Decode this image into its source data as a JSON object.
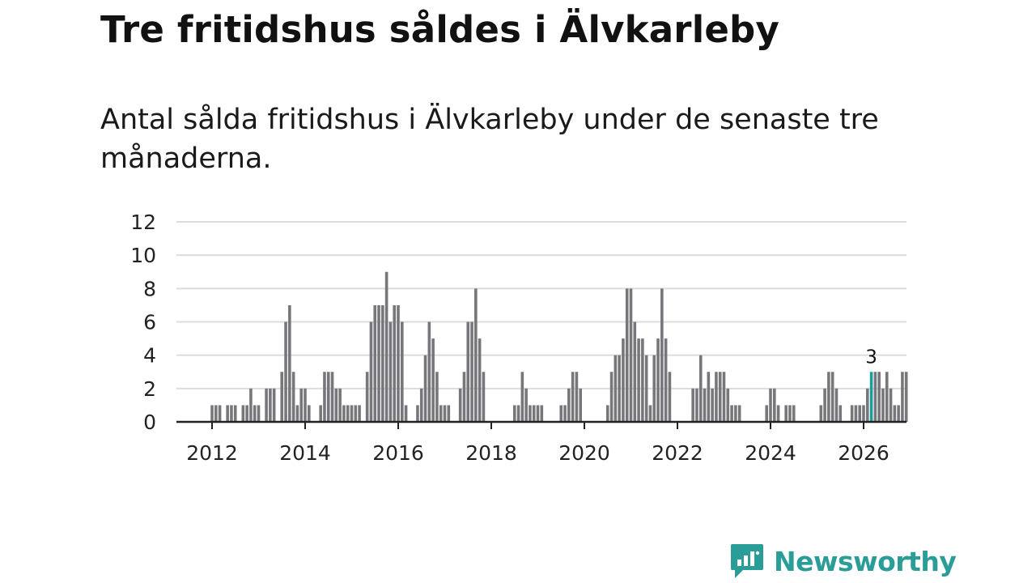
{
  "title": "Tre fritidshus såldes i Älvkarleby",
  "subtitle": "Antal sålda fritidshus i Älvkarleby under de senaste tre månaderna.",
  "brand": {
    "name": "Newsworthy",
    "color": "#2a9d99",
    "icon": "chat-bar-chart-icon"
  },
  "colors": {
    "bar": "#77767b",
    "highlight": "#1a9e9a",
    "grid": "#dcdcdc",
    "axis": "#222222"
  },
  "chart_data": {
    "type": "bar",
    "title": "",
    "xlabel": "",
    "ylabel": "",
    "ylim": [
      0,
      12
    ],
    "yticks": [
      0,
      2,
      4,
      6,
      8,
      10,
      12
    ],
    "xticks": [
      "2012",
      "2014",
      "2016",
      "2018",
      "2020",
      "2022",
      "2024",
      "2026"
    ],
    "start": "2012-01",
    "series": [
      {
        "name": "Antal sålda fritidshus",
        "values": [
          1,
          1,
          1,
          0,
          1,
          1,
          1,
          0,
          1,
          1,
          2,
          1,
          1,
          0,
          2,
          2,
          2,
          0,
          3,
          6,
          7,
          3,
          1,
          2,
          2,
          1,
          0,
          0,
          1,
          3,
          3,
          3,
          2,
          2,
          1,
          1,
          1,
          1,
          1,
          0,
          3,
          6,
          7,
          7,
          7,
          9,
          6,
          7,
          7,
          6,
          1,
          0,
          0,
          1,
          2,
          4,
          6,
          5,
          3,
          1,
          1,
          1,
          0,
          0,
          2,
          3,
          6,
          6,
          8,
          5,
          3,
          0,
          0,
          0,
          0,
          0,
          0,
          0,
          1,
          1,
          3,
          2,
          1,
          1,
          1,
          1,
          0,
          0,
          0,
          0,
          1,
          1,
          2,
          3,
          3,
          2,
          0,
          0,
          0,
          0,
          0,
          0,
          1,
          3,
          4,
          4,
          5,
          8,
          8,
          6,
          5,
          5,
          4,
          1,
          4,
          5,
          8,
          5,
          3,
          0,
          0,
          0,
          0,
          0,
          2,
          2,
          4,
          2,
          3,
          2,
          3,
          3,
          3,
          2,
          1,
          1,
          1,
          0,
          0,
          0,
          0,
          0,
          0,
          1,
          2,
          2,
          1,
          0,
          1,
          1,
          1,
          0,
          0,
          0,
          0,
          0,
          0,
          1,
          2,
          3,
          3,
          2,
          1,
          0,
          0,
          1,
          1,
          1,
          1,
          2,
          3,
          3,
          3,
          2,
          3,
          2,
          1,
          1,
          3,
          3
        ]
      }
    ],
    "highlight": {
      "index": 170,
      "label": "3"
    }
  }
}
